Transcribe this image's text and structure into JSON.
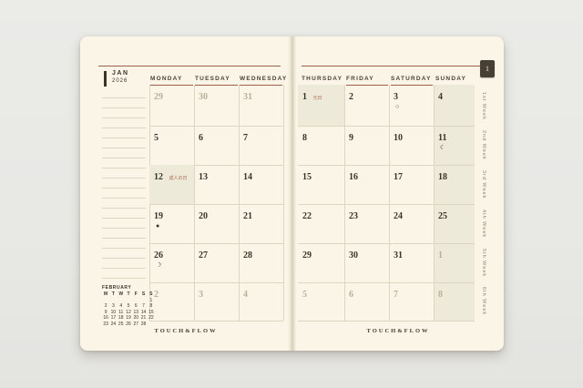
{
  "colors": {
    "background": "#e9e9e6",
    "page": "#faf5e6",
    "accent_rule": "#9b6049",
    "grid_line": "#ddd6c2",
    "shaded_cell": "#edead9",
    "ink": "#3b342b",
    "muted_day": "#b9b09c",
    "holiday_text": "#a96a4f",
    "week_label": "#8d8472",
    "tab_bg": "#473e34",
    "tab_text": "#f2ead6"
  },
  "left_page": {
    "month_label": "JAN",
    "year_label": "2026",
    "weekday_headers": [
      "MONDAY",
      "TUESDAY",
      "WEDNESDAY"
    ],
    "grid": [
      [
        {
          "day": "29"
        },
        {
          "day": "30"
        },
        {
          "day": "31"
        }
      ],
      [
        {
          "day": "5"
        },
        {
          "day": "6"
        },
        {
          "day": "7"
        }
      ],
      [
        {
          "day": "12",
          "holiday": "成人の日"
        },
        {
          "day": "13"
        },
        {
          "day": "14"
        }
      ],
      [
        {
          "day": "19",
          "moon": "●"
        },
        {
          "day": "20"
        },
        {
          "day": "21"
        }
      ],
      [
        {
          "day": "26",
          "moon": "☽"
        },
        {
          "day": "27"
        },
        {
          "day": "28"
        }
      ],
      [
        {
          "day": "2"
        },
        {
          "day": "3"
        },
        {
          "day": "4"
        }
      ]
    ],
    "mini_calendar": {
      "title": "FEBRUARY",
      "day_headers": [
        "M",
        "T",
        "W",
        "T",
        "F",
        "S",
        "S"
      ],
      "weeks": [
        [
          "",
          "",
          "",
          "",
          "",
          "",
          "1"
        ],
        [
          "2",
          "3",
          "4",
          "5",
          "6",
          "7",
          "8"
        ],
        [
          "9",
          "10",
          "11",
          "12",
          "13",
          "14",
          "15"
        ],
        [
          "16",
          "17",
          "18",
          "19",
          "20",
          "21",
          "22"
        ],
        [
          "23",
          "24",
          "25",
          "26",
          "27",
          "28",
          ""
        ]
      ]
    },
    "brand": "TOUCH&FLOW"
  },
  "right_page": {
    "weekday_headers": [
      "THURSDAY",
      "FRIDAY",
      "SATURDAY",
      "SUNDAY"
    ],
    "grid": [
      [
        {
          "day": "1",
          "holiday": "元日"
        },
        {
          "day": "2"
        },
        {
          "day": "3",
          "moon": "○"
        },
        {
          "day": "4"
        }
      ],
      [
        {
          "day": "8"
        },
        {
          "day": "9"
        },
        {
          "day": "10"
        },
        {
          "day": "11",
          "moon": "☾"
        }
      ],
      [
        {
          "day": "15"
        },
        {
          "day": "16"
        },
        {
          "day": "17"
        },
        {
          "day": "18"
        }
      ],
      [
        {
          "day": "22"
        },
        {
          "day": "23"
        },
        {
          "day": "24"
        },
        {
          "day": "25"
        }
      ],
      [
        {
          "day": "29"
        },
        {
          "day": "30"
        },
        {
          "day": "31"
        },
        {
          "day": "1"
        }
      ],
      [
        {
          "day": "5"
        },
        {
          "day": "6"
        },
        {
          "day": "7"
        },
        {
          "day": "8"
        }
      ]
    ],
    "week_labels": [
      "1st Week",
      "2nd Week",
      "3rd Week",
      "4th Week",
      "5th Week",
      "6th Week"
    ],
    "month_tab": "1",
    "brand": "TOUCH&FLOW"
  }
}
